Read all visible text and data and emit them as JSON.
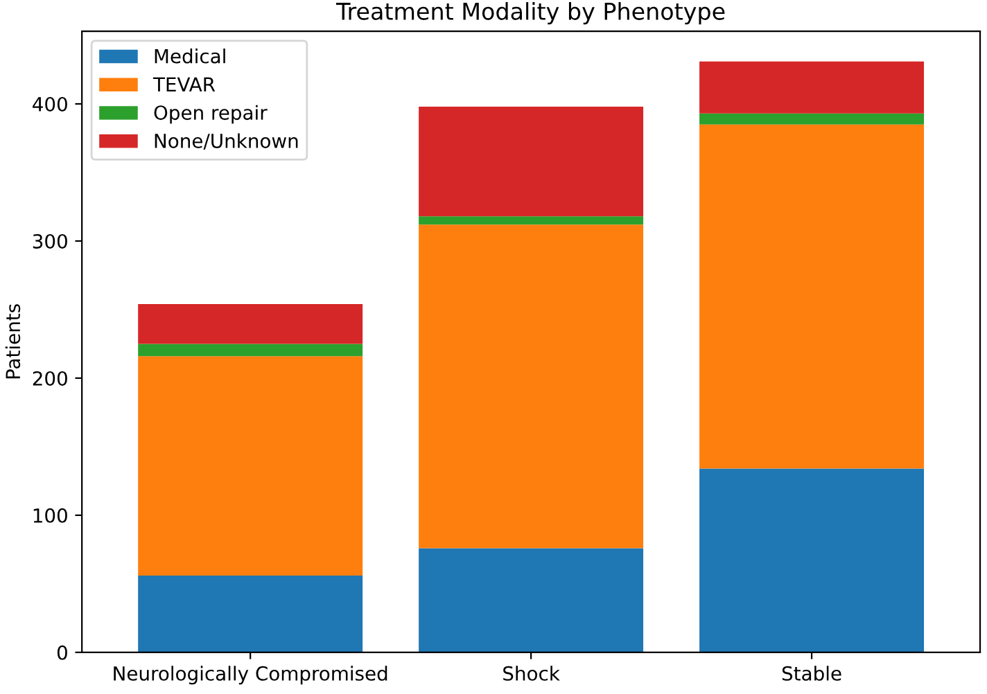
{
  "chart_data": {
    "type": "bar",
    "title": "Treatment Modality by Phenotype",
    "ylabel": "Patients",
    "stacked": true,
    "categories": [
      "Neurologically Compromised",
      "Shock",
      "Stable"
    ],
    "series": [
      {
        "name": "Medical",
        "color": "#1f77b4",
        "values": [
          56,
          76,
          134
        ]
      },
      {
        "name": "TEVAR",
        "color": "#ff7f0e",
        "values": [
          160,
          236,
          251
        ]
      },
      {
        "name": "Open repair",
        "color": "#2ca02c",
        "values": [
          9,
          6,
          8
        ]
      },
      {
        "name": "None/Unknown",
        "color": "#d62728",
        "values": [
          29,
          80,
          38
        ]
      }
    ],
    "ylim": [
      0,
      453
    ],
    "yticks": [
      0,
      100,
      200,
      300,
      400
    ],
    "legend": "top left",
    "grid": false
  }
}
